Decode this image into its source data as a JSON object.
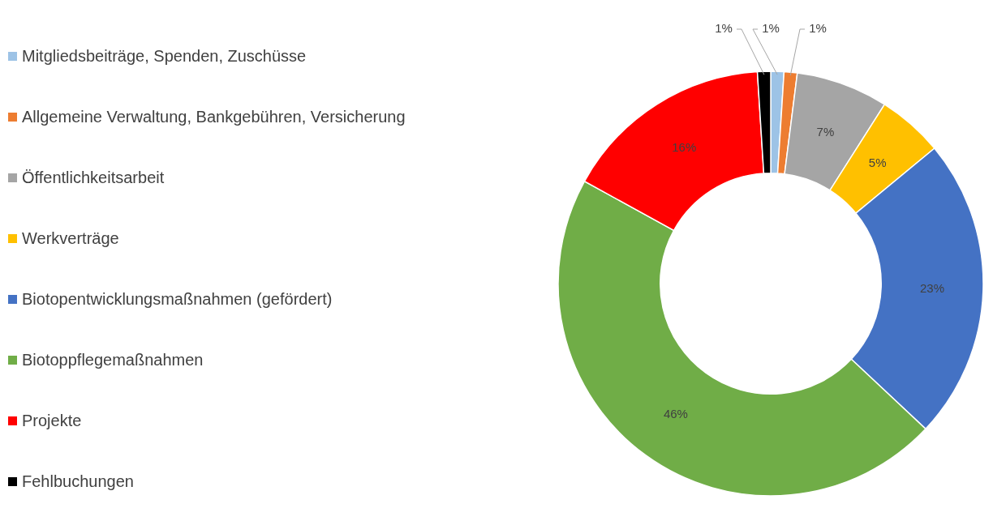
{
  "chart_data": {
    "type": "donut",
    "categories": [
      "Mitgliedsbeiträge, Spenden, Zuschüsse",
      "Allgemeine Verwaltung, Bankgebühren, Versicherung",
      "Öffentlichkeitsarbeit",
      "Werkverträge",
      "Biotopentwicklungsmaßnahmen (gefördert)",
      "Biotoppflegemaßnahmen",
      "Projekte",
      "Fehlbuchungen"
    ],
    "values": [
      1,
      1,
      7,
      5,
      23,
      46,
      16,
      1
    ],
    "colors": [
      "#9dc3e6",
      "#ed7d31",
      "#a5a5a5",
      "#ffc000",
      "#4472c4",
      "#70ad47",
      "#ff0000",
      "#000000"
    ],
    "value_labels": [
      "1%",
      "1%",
      "7%",
      "5%",
      "23%",
      "46%",
      "16%",
      "1%"
    ],
    "legend": "left"
  }
}
